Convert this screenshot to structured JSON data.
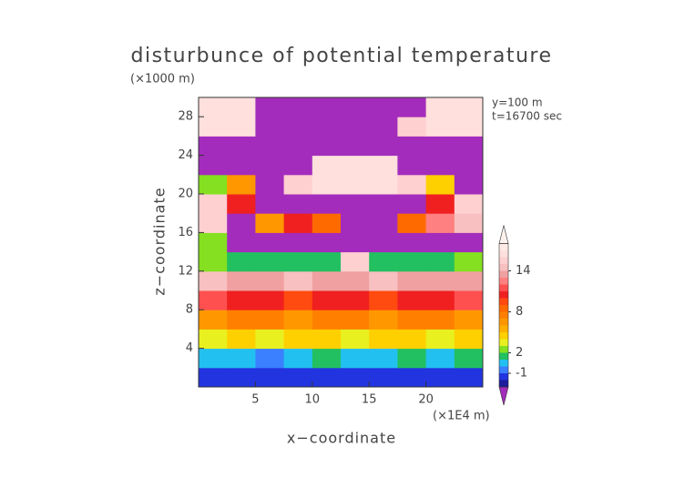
{
  "chart_data": {
    "type": "contour",
    "title": "disturbunce of potential temperature",
    "x_label": "x−coordinate",
    "y_label": "z−coordinate",
    "x_unit": "(×1E4 m)",
    "y_unit": "(×1000 m)",
    "annotations": [
      "y=100 m",
      "t=16700 sec"
    ],
    "xlim": [
      0,
      25
    ],
    "ylim": [
      0,
      30
    ],
    "xticks": [
      5,
      10,
      15,
      20
    ],
    "yticks": [
      4,
      8,
      12,
      16,
      20,
      24,
      28
    ],
    "x": [
      1.25,
      3.75,
      6.25,
      8.75,
      11.25,
      13.75,
      16.25,
      18.75,
      21.25,
      23.75
    ],
    "y": [
      1,
      3,
      5,
      7,
      9,
      11,
      13,
      15,
      17,
      19,
      21,
      23,
      25,
      27,
      29
    ],
    "z": [
      [
        -2,
        -2,
        -2,
        -2,
        -2,
        -2,
        -2,
        -2,
        -2,
        -2
      ],
      [
        0,
        0,
        -1,
        0,
        1,
        0,
        0,
        1,
        0,
        1
      ],
      [
        3,
        4,
        3,
        4,
        4,
        3,
        4,
        4,
        3,
        4
      ],
      [
        6,
        7,
        7,
        6,
        7,
        7,
        6,
        7,
        7,
        6
      ],
      [
        11,
        10,
        10,
        9,
        10,
        10,
        9,
        10,
        10,
        11
      ],
      [
        14,
        13,
        13,
        14,
        13,
        13,
        14,
        13,
        13,
        13
      ],
      [
        2,
        1,
        1,
        1,
        1,
        15,
        1,
        1,
        1,
        2
      ],
      [
        2,
        -4,
        -4,
        -4,
        -4,
        -4,
        -4,
        -4,
        -4,
        -4
      ],
      [
        15,
        -4,
        6,
        10,
        8,
        -4,
        -4,
        8,
        12,
        14
      ],
      [
        15,
        10,
        -4,
        -4,
        -4,
        -4,
        -4,
        -4,
        10,
        15
      ],
      [
        2,
        6,
        -4,
        15,
        16,
        16,
        16,
        15,
        4,
        -4
      ],
      [
        -4,
        -4,
        -4,
        -4,
        16,
        16,
        16,
        -4,
        -4,
        -4
      ],
      [
        -4,
        -4,
        -4,
        -4,
        -4,
        -4,
        -4,
        -4,
        -4,
        -4
      ],
      [
        16,
        16,
        -4,
        -4,
        -4,
        -4,
        -4,
        15,
        16,
        16
      ],
      [
        16,
        16,
        -4,
        -4,
        -4,
        -4,
        -4,
        -4,
        16,
        16
      ]
    ],
    "levels": [
      -3,
      -2,
      -1,
      0,
      1,
      2,
      3,
      4,
      5,
      6,
      7,
      8,
      9,
      10,
      11,
      12,
      13,
      14,
      15,
      16,
      17,
      18
    ],
    "colors": [
      "#a42cbc",
      "#1c1c9c",
      "#2234e0",
      "#3a80ff",
      "#22c0f0",
      "#22c060",
      "#84e020",
      "#e8f020",
      "#ffd000",
      "#ffb000",
      "#ff9800",
      "#ff8000",
      "#ff6a00",
      "#ff4a10",
      "#f02020",
      "#ff5050",
      "#ff8080",
      "#f0a0a0",
      "#f8c0c0",
      "#ffd0d0",
      "#ffe0dc",
      "#ffeae6",
      "#fff2ee"
    ],
    "colorbar_ticks": [
      -1,
      2,
      8,
      14
    ]
  }
}
